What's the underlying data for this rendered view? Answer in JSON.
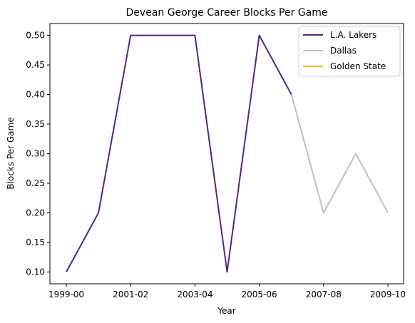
{
  "chart_data": {
    "type": "line",
    "title": "Devean George Career Blocks Per Game",
    "xlabel": "Year",
    "ylabel": "Blocks Per Game",
    "x": [
      "1999-00",
      "2000-01",
      "2001-02",
      "2002-03",
      "2003-04",
      "2004-05",
      "2005-06",
      "2006-07",
      "2007-08",
      "2008-09",
      "2009-10"
    ],
    "xtick_labels": [
      "1999-00",
      "2001-02",
      "2003-04",
      "2005-06",
      "2007-08",
      "2009-10"
    ],
    "ylim": [
      0.08,
      0.52
    ],
    "yticks": [
      "0.10",
      "0.15",
      "0.20",
      "0.25",
      "0.30",
      "0.35",
      "0.40",
      "0.45",
      "0.50"
    ],
    "legend_position": "top-right",
    "grid": false,
    "series": [
      {
        "name": "L.A. Lakers",
        "color": "#552583",
        "x": [
          "1999-00",
          "2000-01",
          "2001-02",
          "2002-03",
          "2003-04",
          "2004-05",
          "2005-06",
          "2006-07"
        ],
        "values": [
          0.1,
          0.2,
          0.5,
          0.5,
          0.5,
          0.1,
          0.5,
          0.4
        ]
      },
      {
        "name": "Dallas",
        "color": "#c0c0c0",
        "x": [
          "2006-07",
          "2007-08",
          "2008-09",
          "2009-10"
        ],
        "values": [
          0.4,
          0.2,
          0.3,
          0.2
        ]
      },
      {
        "name": "Golden State",
        "color": "#fdb927",
        "x": [],
        "values": []
      }
    ]
  }
}
